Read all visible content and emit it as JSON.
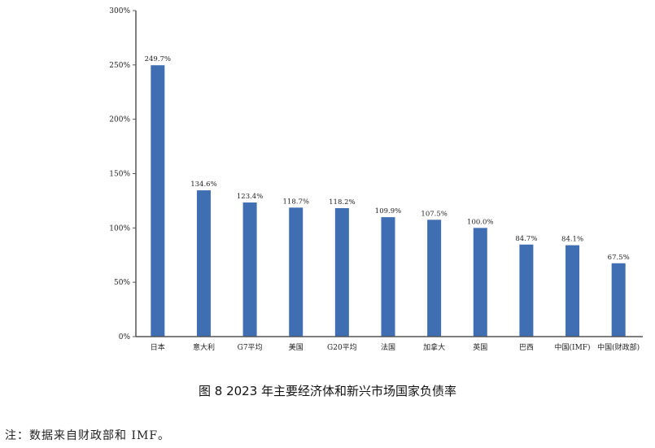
{
  "figure": {
    "caption": "图 8   2023 年主要经济体和新兴市场国家负债率",
    "note": "注：数据来自财政部和 IMF。"
  },
  "colors": {
    "bar": "#3f6eb3",
    "axis": "#555555",
    "text": "#222222"
  },
  "chart_data": {
    "type": "bar",
    "title": "2023 年主要经济体和新兴市场国家负债率",
    "xlabel": "",
    "ylabel": "",
    "categories": [
      "日本",
      "意大利",
      "G7平均",
      "美国",
      "G20平均",
      "法国",
      "加拿大",
      "英国",
      "巴西",
      "中国(IMF)",
      "中国(财政部)"
    ],
    "values": [
      249.7,
      134.6,
      123.4,
      118.7,
      118.2,
      109.9,
      107.5,
      100.0,
      84.7,
      84.1,
      67.5
    ],
    "data_labels": [
      "249.7%",
      "134.6%",
      "123.4%",
      "118.7%",
      "118.2%",
      "109.9%",
      "107.5%",
      "100.0%",
      "84.7%",
      "84.1%",
      "67.5%"
    ],
    "ylim": [
      0,
      300
    ],
    "yticks": [
      0,
      50,
      100,
      150,
      200,
      250,
      300
    ],
    "ytick_labels": [
      "0%",
      "50%",
      "100%",
      "150%",
      "200%",
      "250%",
      "300%"
    ],
    "grid": false,
    "legend": "none"
  }
}
